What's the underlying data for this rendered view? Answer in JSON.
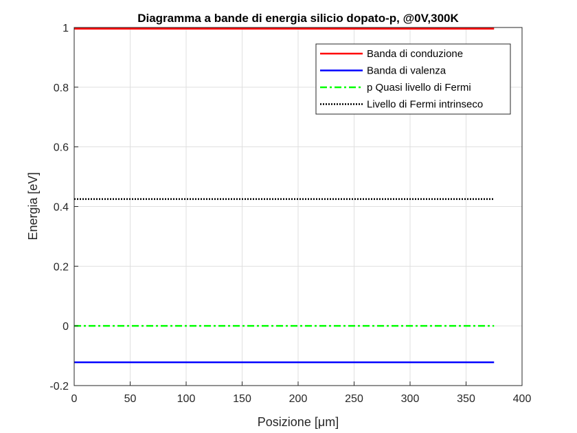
{
  "chart_data": {
    "type": "line",
    "title": "Diagramma a bande di energia silicio dopato-p, @0V,300K",
    "xlabel": "Posizione [μm]",
    "ylabel": "Energia [eV]",
    "xlim": [
      0,
      400
    ],
    "ylim": [
      -0.2,
      1
    ],
    "xticks": [
      0,
      50,
      100,
      150,
      200,
      250,
      300,
      350,
      400
    ],
    "yticks": [
      -0.2,
      0,
      0.2,
      0.4,
      0.6,
      0.8,
      1
    ],
    "xtick_labels": [
      "0",
      "50",
      "100",
      "150",
      "200",
      "250",
      "300",
      "350",
      "400"
    ],
    "ytick_labels": [
      "-0.2",
      "0",
      "0.2",
      "0.4",
      "0.6",
      "0.8",
      "1"
    ],
    "grid": true,
    "legend_position": "top-right",
    "series": [
      {
        "name": "Banda di conduzione",
        "color": "#ff0000",
        "dash": "solid",
        "x": [
          0,
          375
        ],
        "y": [
          0.996,
          0.996
        ]
      },
      {
        "name": "Banda di valenza",
        "color": "#0000ff",
        "dash": "solid",
        "x": [
          0,
          375
        ],
        "y": [
          -0.122,
          -0.122
        ]
      },
      {
        "name": "p Quasi livello di Fermi",
        "color": "#00ff00",
        "dash": "dashdot",
        "x": [
          0,
          375
        ],
        "y": [
          0,
          0
        ]
      },
      {
        "name": "Livello di Fermi intrinseco",
        "color": "#000000",
        "dash": "dotted",
        "x": [
          0,
          375
        ],
        "y": [
          0.425,
          0.425
        ]
      }
    ]
  }
}
